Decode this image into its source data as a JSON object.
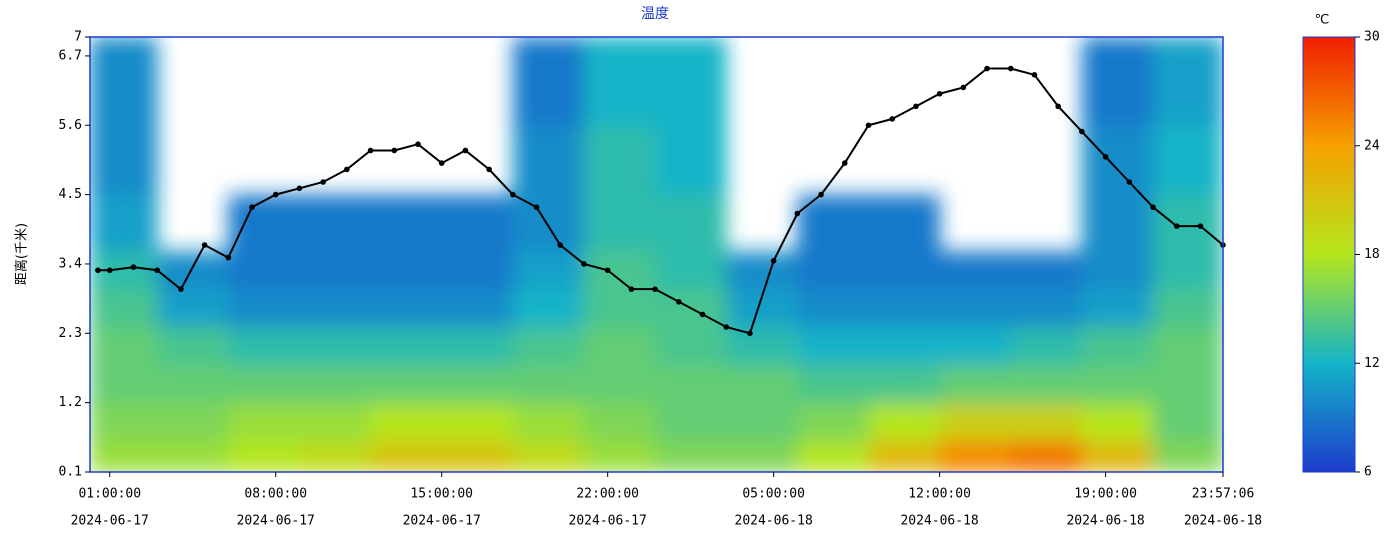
{
  "chart_data": {
    "type": "heatmap-line",
    "title": "温度",
    "y_label": "距离(千米)",
    "colorbar_title": "℃",
    "ylim": [
      0.1,
      7.0
    ],
    "yticks": [
      0.1,
      1.2,
      2.3,
      3.4,
      4.5,
      5.6,
      6.7,
      7.0
    ],
    "xlim": [
      "2024-06-17 00:10:00",
      "2024-06-18 23:57:06"
    ],
    "xticks": [
      {
        "value": "2024-06-17 01:00:00",
        "label": [
          "01:00:00",
          "2024-06-17"
        ]
      },
      {
        "value": "2024-06-17 08:00:00",
        "label": [
          "08:00:00",
          "2024-06-17"
        ]
      },
      {
        "value": "2024-06-17 15:00:00",
        "label": [
          "15:00:00",
          "2024-06-17"
        ]
      },
      {
        "value": "2024-06-17 22:00:00",
        "label": [
          "22:00:00",
          "2024-06-17"
        ]
      },
      {
        "value": "2024-06-18 05:00:00",
        "label": [
          "05:00:00",
          "2024-06-18"
        ]
      },
      {
        "value": "2024-06-18 12:00:00",
        "label": [
          "12:00:00",
          "2024-06-18"
        ]
      },
      {
        "value": "2024-06-18 19:00:00",
        "label": [
          "19:00:00",
          "2024-06-18"
        ]
      },
      {
        "value": "2024-06-18 23:57:06",
        "label": [
          "23:57:06",
          "2024-06-18"
        ]
      }
    ],
    "zlim": [
      6,
      30
    ],
    "zticks": [
      30,
      24,
      18,
      12,
      6
    ],
    "colorscale": [
      "#1e3ccc",
      "#14b4c8",
      "#b4e61e",
      "#f5a000",
      "#f01e00"
    ],
    "x_bins": [
      "2024-06-17 00:10:00",
      "2024-06-17 03:00:00",
      "2024-06-17 06:00:00",
      "2024-06-17 09:00:00",
      "2024-06-17 12:00:00",
      "2024-06-17 15:00:00",
      "2024-06-17 18:00:00",
      "2024-06-17 21:00:00",
      "2024-06-18 00:00:00",
      "2024-06-18 03:00:00",
      "2024-06-18 06:00:00",
      "2024-06-18 09:00:00",
      "2024-06-18 12:00:00",
      "2024-06-18 15:00:00",
      "2024-06-18 18:00:00",
      "2024-06-18 21:00:00",
      "2024-06-18 23:57:06"
    ],
    "y_bins": [
      0.1,
      0.6,
      1.2,
      1.8,
      2.4,
      3.0,
      3.6,
      4.5,
      5.6,
      7.0
    ],
    "z": [
      [
        17,
        17,
        18,
        19,
        21,
        21,
        19,
        17,
        16,
        16,
        18,
        22,
        25,
        26,
        22,
        16
      ],
      [
        16,
        16,
        17,
        17,
        18,
        18,
        17,
        16,
        15,
        15,
        16,
        18,
        20,
        20,
        18,
        15
      ],
      [
        15,
        15,
        15,
        15,
        15,
        15,
        15,
        15,
        15,
        15,
        14,
        14,
        15,
        15,
        15,
        15
      ],
      [
        15,
        14,
        13,
        13,
        13,
        13,
        14,
        15,
        14,
        13,
        12,
        12,
        12,
        13,
        14,
        15
      ],
      [
        14,
        11,
        10,
        10,
        10,
        10,
        12,
        14,
        14,
        11,
        10,
        10,
        10,
        10,
        11,
        14
      ],
      [
        13,
        10,
        9,
        9,
        9,
        9,
        11,
        14,
        13,
        10,
        9,
        9,
        9,
        9,
        10,
        13
      ],
      [
        11,
        null,
        9,
        9,
        9,
        9,
        10,
        13,
        13,
        null,
        9,
        9,
        null,
        null,
        10,
        13
      ],
      [
        10,
        null,
        null,
        null,
        null,
        null,
        10,
        13,
        12,
        null,
        null,
        null,
        null,
        null,
        10,
        12
      ],
      [
        10,
        null,
        null,
        null,
        null,
        null,
        9,
        12,
        12,
        null,
        null,
        null,
        null,
        null,
        9,
        11
      ]
    ],
    "line": {
      "color": "#000000",
      "x": [
        "2024-06-17 00:30:00",
        "2024-06-17 01:00:00",
        "2024-06-17 02:00:00",
        "2024-06-17 03:00:00",
        "2024-06-17 04:00:00",
        "2024-06-17 05:00:00",
        "2024-06-17 06:00:00",
        "2024-06-17 07:00:00",
        "2024-06-17 08:00:00",
        "2024-06-17 09:00:00",
        "2024-06-17 10:00:00",
        "2024-06-17 11:00:00",
        "2024-06-17 12:00:00",
        "2024-06-17 13:00:00",
        "2024-06-17 14:00:00",
        "2024-06-17 15:00:00",
        "2024-06-17 16:00:00",
        "2024-06-17 17:00:00",
        "2024-06-17 18:00:00",
        "2024-06-17 19:00:00",
        "2024-06-17 20:00:00",
        "2024-06-17 21:00:00",
        "2024-06-17 22:00:00",
        "2024-06-17 23:00:00",
        "2024-06-18 00:00:00",
        "2024-06-18 01:00:00",
        "2024-06-18 02:00:00",
        "2024-06-18 03:00:00",
        "2024-06-18 04:00:00",
        "2024-06-18 05:00:00",
        "2024-06-18 06:00:00",
        "2024-06-18 07:00:00",
        "2024-06-18 08:00:00",
        "2024-06-18 09:00:00",
        "2024-06-18 10:00:00",
        "2024-06-18 11:00:00",
        "2024-06-18 12:00:00",
        "2024-06-18 13:00:00",
        "2024-06-18 14:00:00",
        "2024-06-18 15:00:00",
        "2024-06-18 16:00:00",
        "2024-06-18 17:00:00",
        "2024-06-18 18:00:00",
        "2024-06-18 19:00:00",
        "2024-06-18 20:00:00",
        "2024-06-18 21:00:00",
        "2024-06-18 22:00:00",
        "2024-06-18 23:00:00",
        "2024-06-18 23:57:06"
      ],
      "values": [
        3.3,
        3.3,
        3.35,
        3.3,
        3.0,
        3.7,
        3.5,
        4.3,
        4.5,
        4.6,
        4.7,
        4.9,
        5.2,
        5.2,
        5.3,
        5.0,
        5.2,
        4.9,
        4.5,
        4.3,
        3.7,
        3.4,
        3.3,
        3.0,
        3.0,
        2.8,
        2.6,
        2.4,
        2.3,
        3.45,
        4.2,
        4.5,
        5.0,
        5.6,
        5.7,
        5.9,
        6.1,
        6.2,
        6.5,
        6.5,
        6.4,
        5.9,
        5.5,
        5.1,
        4.7,
        4.3,
        4.0,
        4.0,
        3.7
      ]
    }
  }
}
